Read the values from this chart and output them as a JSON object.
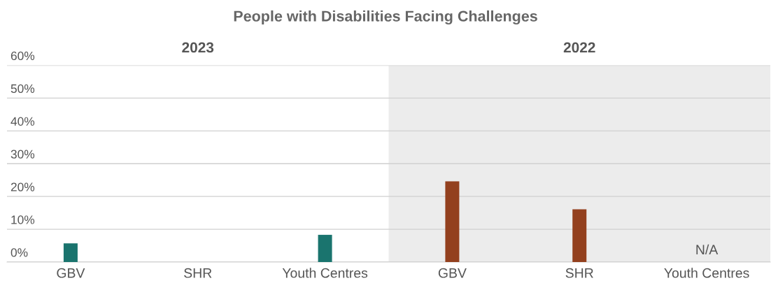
{
  "chart_data": {
    "type": "bar",
    "title": "People with Disabilities Facing Challenges",
    "categories": [
      "GBV",
      "SHR",
      "Youth Centres",
      "GBV",
      "SHR",
      "Youth Centres"
    ],
    "values": [
      5.7,
      null,
      8.3,
      24.6,
      16.1,
      null
    ],
    "value_labels": [
      null,
      null,
      null,
      null,
      null,
      "N/A"
    ],
    "colors": [
      "#1a746e",
      "#1a746e",
      "#1a746e",
      "#93401e",
      "#93401e",
      "#93401e"
    ],
    "ylim": [
      0,
      60
    ],
    "yticks": [
      {
        "value": 0,
        "label": "0%"
      },
      {
        "value": 10,
        "label": "10%"
      },
      {
        "value": 20,
        "label": "20%"
      },
      {
        "value": 30,
        "label": "30%"
      },
      {
        "value": 40,
        "label": "40%"
      },
      {
        "value": 50,
        "label": "50%"
      },
      {
        "value": 60,
        "label": "60%"
      }
    ],
    "annotations": [
      "2023",
      "2022"
    ],
    "grid": "y"
  }
}
